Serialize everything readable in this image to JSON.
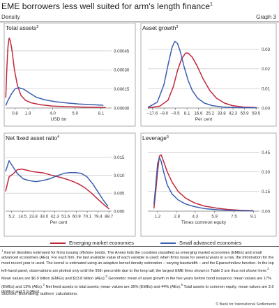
{
  "header": {
    "title": "EME borrowers less well suited for arm's length finance",
    "title_note": "1",
    "subtitle": "Density",
    "graph_label": "Graph 3"
  },
  "legend": {
    "items": [
      {
        "label": "Emerging market economies",
        "color": "#c0283c"
      },
      {
        "label": "Small advanced economies",
        "color": "#3b5fb0"
      }
    ]
  },
  "chart_data": [
    {
      "type": "line",
      "title": "Total assets",
      "title_note": "2",
      "xlabel": "USD bn",
      "x_ticks": [
        "0.8",
        "1.9",
        "4.0",
        "5.9",
        "8.1"
      ],
      "xlim": [
        0,
        9
      ],
      "y_ticks": [
        "0.00000",
        "0.00015",
        "0.00030",
        "0.00045"
      ],
      "ylim": [
        0,
        0.00057
      ],
      "series": [
        {
          "name": "Emerging market economies",
          "color": "#c0283c",
          "points": [
            [
              0.02,
              8e-05
            ],
            [
              0.1,
              0.0003
            ],
            [
              0.2,
              0.00048
            ],
            [
              0.3,
              0.00055
            ],
            [
              0.4,
              0.00053
            ],
            [
              0.55,
              0.00045
            ],
            [
              0.75,
              0.0003
            ],
            [
              1.0,
              0.00018
            ],
            [
              1.3,
              0.0001
            ],
            [
              1.7,
              6e-05
            ],
            [
              2.2,
              4e-05
            ],
            [
              3.0,
              2.5e-05
            ],
            [
              4.0,
              1.5e-05
            ],
            [
              5.5,
              1e-05
            ],
            [
              7.0,
              6e-06
            ],
            [
              8.5,
              4e-06
            ]
          ]
        },
        {
          "name": "Small advanced economies",
          "color": "#3b5fb0",
          "points": [
            [
              0.02,
              2e-05
            ],
            [
              0.2,
              6e-05
            ],
            [
              0.5,
              0.00011
            ],
            [
              0.8,
              0.00015
            ],
            [
              1.1,
              0.00016
            ],
            [
              1.5,
              0.00015
            ],
            [
              2.0,
              0.00012
            ],
            [
              2.6,
              8.5e-05
            ],
            [
              3.3,
              6.5e-05
            ],
            [
              4.2,
              5e-05
            ],
            [
              5.2,
              4e-05
            ],
            [
              6.2,
              3.2e-05
            ],
            [
              7.2,
              2.7e-05
            ],
            [
              8.3,
              2.2e-05
            ]
          ]
        }
      ]
    },
    {
      "type": "line",
      "title": "Asset growth",
      "title_note": "3",
      "xlabel": "Per cent",
      "x_ticks": [
        "–17.6",
        "–9.0",
        "–0.5",
        "8.1",
        "16.6",
        "25.2",
        "33.8",
        "42.3",
        "50.9",
        "59.5"
      ],
      "xlim": [
        -21,
        62
      ],
      "y_ticks": [
        "0.00",
        "0.01",
        "0.02",
        "0.03"
      ],
      "ylim": [
        0,
        0.037
      ],
      "series": [
        {
          "name": "Emerging market economies",
          "color": "#c0283c",
          "points": [
            [
              -21,
              0
            ],
            [
              -12,
              0.001
            ],
            [
              -6,
              0.004
            ],
            [
              -2,
              0.011
            ],
            [
              1,
              0.019
            ],
            [
              4,
              0.025
            ],
            [
              7,
              0.028
            ],
            [
              9,
              0.028
            ],
            [
              12,
              0.026
            ],
            [
              16,
              0.021
            ],
            [
              20,
              0.015
            ],
            [
              25,
              0.009
            ],
            [
              30,
              0.005
            ],
            [
              36,
              0.0025
            ],
            [
              42,
              0.0012
            ],
            [
              50,
              0.0005
            ],
            [
              60,
              0.0002
            ]
          ]
        },
        {
          "name": "Small advanced economies",
          "color": "#3b5fb0",
          "points": [
            [
              -21,
              0.0003
            ],
            [
              -14,
              0.003
            ],
            [
              -9,
              0.012
            ],
            [
              -6,
              0.022
            ],
            [
              -3,
              0.031
            ],
            [
              -1,
              0.034
            ],
            [
              1,
              0.033
            ],
            [
              3,
              0.029
            ],
            [
              6,
              0.021
            ],
            [
              9,
              0.014
            ],
            [
              12,
              0.009
            ],
            [
              16,
              0.005
            ],
            [
              21,
              0.0025
            ],
            [
              27,
              0.0012
            ],
            [
              35,
              0.0005
            ],
            [
              45,
              0.0002
            ],
            [
              60,
              0.0001
            ]
          ]
        }
      ]
    },
    {
      "type": "line",
      "title": "Net fixed asset ratio",
      "title_note": "4",
      "xlabel": "Per cent",
      "x_ticks": [
        "5.2",
        "14.5",
        "23.8",
        "33.0",
        "42.3",
        "51.6",
        "60.9",
        "70.1",
        "79.4",
        "88.7"
      ],
      "xlim": [
        0,
        91
      ],
      "y_ticks": [
        "0.000",
        "0.005",
        "0.010",
        "0.015"
      ],
      "ylim": [
        0,
        0.0182
      ],
      "series": [
        {
          "name": "Emerging market economies",
          "color": "#c0283c",
          "points": [
            [
              0,
              0.0055
            ],
            [
              3,
              0.0095
            ],
            [
              7,
              0.0105
            ],
            [
              10,
              0.0115
            ],
            [
              14,
              0.0117
            ],
            [
              18,
              0.0114
            ],
            [
              23,
              0.011
            ],
            [
              28,
              0.0108
            ],
            [
              33,
              0.0106
            ],
            [
              38,
              0.0101
            ],
            [
              43,
              0.0097
            ],
            [
              48,
              0.0093
            ],
            [
              53,
              0.0088
            ],
            [
              58,
              0.0082
            ],
            [
              63,
              0.0075
            ],
            [
              68,
              0.0065
            ],
            [
              73,
              0.0052
            ],
            [
              78,
              0.0037
            ],
            [
              83,
              0.0022
            ],
            [
              87,
              0.0011
            ],
            [
              89,
              0.0006
            ]
          ]
        },
        {
          "name": "Small advanced economies",
          "color": "#3b5fb0",
          "points": [
            [
              0,
              0.011
            ],
            [
              3,
              0.014
            ],
            [
              6,
              0.0125
            ],
            [
              10,
              0.0105
            ],
            [
              15,
              0.009
            ],
            [
              20,
              0.0085
            ],
            [
              26,
              0.0082
            ],
            [
              32,
              0.0085
            ],
            [
              38,
              0.009
            ],
            [
              44,
              0.0098
            ],
            [
              50,
              0.0105
            ],
            [
              55,
              0.0107
            ],
            [
              60,
              0.0107
            ],
            [
              65,
              0.0105
            ],
            [
              70,
              0.0095
            ],
            [
              75,
              0.0075
            ],
            [
              80,
              0.005
            ],
            [
              84,
              0.003
            ],
            [
              88,
              0.0013
            ]
          ]
        }
      ]
    },
    {
      "type": "line",
      "title": "Leverage",
      "title_note": "5",
      "xlabel": "Times common equity",
      "x_ticks": [
        "1.2",
        "2.8",
        "4.3",
        "5.9",
        "7.5",
        "9.1"
      ],
      "xlim": [
        0.4,
        9.6
      ],
      "y_ticks": [
        "0.00",
        "0.15",
        "0.30",
        "0.45"
      ],
      "ylim": [
        0,
        0.5
      ],
      "series": [
        {
          "name": "Emerging market economies",
          "color": "#c0283c",
          "points": [
            [
              0.9,
              0.02
            ],
            [
              1.05,
              0.15
            ],
            [
              1.2,
              0.3
            ],
            [
              1.35,
              0.42
            ],
            [
              1.5,
              0.43
            ],
            [
              1.7,
              0.38
            ],
            [
              2.0,
              0.3
            ],
            [
              2.4,
              0.22
            ],
            [
              2.9,
              0.15
            ],
            [
              3.5,
              0.1
            ],
            [
              4.2,
              0.065
            ],
            [
              5.0,
              0.04
            ],
            [
              6.0,
              0.024
            ],
            [
              7.0,
              0.013
            ],
            [
              8.0,
              0.007
            ],
            [
              9.1,
              0.003
            ]
          ]
        },
        {
          "name": "Small advanced economies",
          "color": "#3b5fb0",
          "points": [
            [
              0.9,
              0.05
            ],
            [
              1.05,
              0.2
            ],
            [
              1.2,
              0.36
            ],
            [
              1.35,
              0.41
            ],
            [
              1.5,
              0.38
            ],
            [
              1.7,
              0.3
            ],
            [
              2.0,
              0.2
            ],
            [
              2.4,
              0.13
            ],
            [
              2.9,
              0.085
            ],
            [
              3.5,
              0.055
            ],
            [
              4.2,
              0.035
            ],
            [
              5.0,
              0.02
            ],
            [
              6.0,
              0.011
            ],
            [
              7.0,
              0.006
            ],
            [
              8.0,
              0.003
            ],
            [
              9.1,
              0.001
            ]
          ]
        }
      ]
    }
  ],
  "footnotes": {
    "n1": "1",
    "t1": " Kernel densities estimated for firms issuing offshore bonds. The Annex lists the countries classified as emerging market economies (EMEs) and small advanced economies (AEs). For each firm, the last available value of each variable is used; when firms issue for several years in a row, the information for the most recent year is used. The kernel is estimated using an adaptive kernel density estimation – varying bandwidth – and the Epanechnikov function. In the top left-hand panel, observations are plotted only until the 95th percentile due to the long tail; the largest EME firms shown in Table 2 are thus not shown here.",
    "n2": "2",
    "t2": " Mean values are $6.9 billion (EMEs) and $13.8 billion (AEs).",
    "n3": "3",
    "t3": " Geometric mean of asset growth in the five years before bond issuance; mean values are 17% (EMEs) and 13% (AEs).",
    "n4": "4",
    "t4": " Net fixed assets to total assets; mean values are 36% (EMEs) and 44% (AEs).",
    "n5": "5",
    "t5": " Total assets to common equity; mean values are 3.9 (EMEs) and 5.9 (AEs)."
  },
  "sources": "Sources: Bloomberg; authors' calculations.",
  "copyright": "© Bank for International Settlements"
}
